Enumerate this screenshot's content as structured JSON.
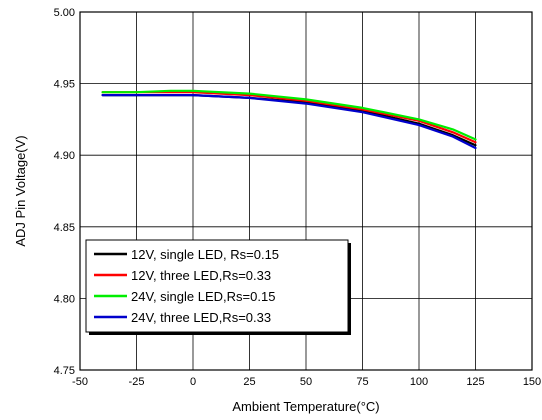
{
  "chart_data": {
    "type": "line",
    "title": "",
    "xlabel": "Ambient Temperature(°C)",
    "ylabel": "ADJ Pin Voltage(V)",
    "xlim": [
      -50,
      150
    ],
    "ylim": [
      4.75,
      5.0
    ],
    "xticks": [
      "-50",
      "-25",
      "0",
      "25",
      "50",
      "75",
      "100",
      "125",
      "150"
    ],
    "yticks": [
      "4.75",
      "4.80",
      "4.85",
      "4.90",
      "4.95",
      "5.00"
    ],
    "grid": true,
    "legend_position": "bottom-left",
    "series": [
      {
        "name": "12V, single LED, Rs=0.15",
        "color": "#000000",
        "x": [
          -40,
          -25,
          -10,
          0,
          25,
          50,
          75,
          100,
          115,
          125
        ],
        "y": [
          4.942,
          4.942,
          4.942,
          4.942,
          4.94,
          4.937,
          4.931,
          4.922,
          4.914,
          4.907
        ]
      },
      {
        "name": "12V, three LED,Rs=0.33",
        "color": "#ff0000",
        "x": [
          -40,
          -25,
          -10,
          0,
          25,
          50,
          75,
          100,
          115,
          125
        ],
        "y": [
          4.944,
          4.944,
          4.944,
          4.944,
          4.942,
          4.938,
          4.932,
          4.924,
          4.916,
          4.909
        ]
      },
      {
        "name": "24V, single LED,Rs=0.15",
        "color": "#00ee00",
        "x": [
          -40,
          -25,
          -10,
          0,
          25,
          50,
          75,
          100,
          115,
          125
        ],
        "y": [
          4.944,
          4.944,
          4.945,
          4.945,
          4.943,
          4.939,
          4.933,
          4.925,
          4.918,
          4.911
        ]
      },
      {
        "name": "24V, three LED,Rs=0.33",
        "color": "#0000cc",
        "x": [
          -40,
          -25,
          -10,
          0,
          25,
          50,
          75,
          100,
          115,
          125
        ],
        "y": [
          4.942,
          4.942,
          4.942,
          4.942,
          4.94,
          4.936,
          4.93,
          4.921,
          4.913,
          4.905
        ]
      }
    ]
  }
}
